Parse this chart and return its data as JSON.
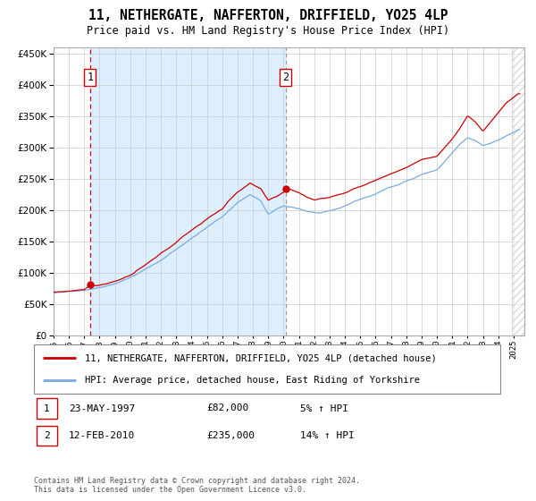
{
  "title": "11, NETHERGATE, NAFFERTON, DRIFFIELD, YO25 4LP",
  "subtitle": "Price paid vs. HM Land Registry's House Price Index (HPI)",
  "legend_line1": "11, NETHERGATE, NAFFERTON, DRIFFIELD, YO25 4LP (detached house)",
  "legend_line2": "HPI: Average price, detached house, East Riding of Yorkshire",
  "annotation1_date": "23-MAY-1997",
  "annotation1_price": "£82,000",
  "annotation1_hpi": "5% ↑ HPI",
  "annotation2_date": "12-FEB-2010",
  "annotation2_price": "£235,000",
  "annotation2_hpi": "14% ↑ HPI",
  "footer": "Contains HM Land Registry data © Crown copyright and database right 2024.\nThis data is licensed under the Open Government Licence v3.0.",
  "sale1_x": 1997.38,
  "sale1_y": 82000,
  "sale2_x": 2010.12,
  "sale2_y": 235000,
  "hpi_color": "#7aaadd",
  "price_color": "#cc0000",
  "grid_color": "#cccccc",
  "shade_color": "#ddeeff",
  "ylim": [
    0,
    460000
  ],
  "yticks": [
    0,
    50000,
    100000,
    150000,
    200000,
    250000,
    300000,
    350000,
    400000,
    450000
  ],
  "xlim_start": 1995.0,
  "xlim_end": 2025.7,
  "hpi_anchors_t": [
    1995.0,
    1996.0,
    1997.0,
    1998.0,
    1999.0,
    2000.0,
    2001.0,
    2002.0,
    2003.0,
    2004.0,
    2005.0,
    2006.0,
    2007.0,
    2007.8,
    2008.5,
    2009.0,
    2009.6,
    2010.0,
    2010.5,
    2011.0,
    2011.5,
    2012.0,
    2012.5,
    2013.0,
    2013.5,
    2014.0,
    2014.5,
    2015.0,
    2015.5,
    2016.0,
    2016.5,
    2017.0,
    2017.5,
    2018.0,
    2018.5,
    2019.0,
    2019.5,
    2020.0,
    2020.5,
    2021.0,
    2021.5,
    2022.0,
    2022.5,
    2023.0,
    2023.5,
    2024.0,
    2024.5,
    2025.3
  ],
  "hpi_anchors_v": [
    68000,
    70000,
    73000,
    78000,
    85000,
    95000,
    108000,
    122000,
    140000,
    158000,
    175000,
    192000,
    215000,
    228000,
    218000,
    195000,
    205000,
    208000,
    206000,
    204000,
    200000,
    198000,
    197000,
    199000,
    202000,
    207000,
    213000,
    218000,
    222000,
    226000,
    232000,
    238000,
    242000,
    248000,
    252000,
    258000,
    262000,
    265000,
    278000,
    292000,
    305000,
    315000,
    310000,
    302000,
    306000,
    312000,
    318000,
    328000
  ],
  "prop_anchors_t": [
    1995.0,
    1996.0,
    1997.0,
    1997.38,
    1998.0,
    1999.0,
    2000.0,
    2001.0,
    2002.0,
    2003.0,
    2004.0,
    2005.0,
    2006.0,
    2007.0,
    2007.8,
    2008.5,
    2009.0,
    2009.5,
    2010.0,
    2010.12,
    2010.5,
    2011.0,
    2011.5,
    2012.0,
    2013.0,
    2014.0,
    2015.0,
    2016.0,
    2017.0,
    2018.0,
    2019.0,
    2020.0,
    2021.0,
    2021.5,
    2022.0,
    2022.5,
    2023.0,
    2023.5,
    2024.0,
    2024.5,
    2025.3
  ],
  "prop_anchors_v": [
    69000,
    71000,
    75000,
    82000,
    83000,
    90000,
    100000,
    115000,
    132000,
    150000,
    170000,
    188000,
    205000,
    232000,
    245000,
    235000,
    215000,
    220000,
    228000,
    235000,
    232000,
    228000,
    222000,
    218000,
    222000,
    230000,
    240000,
    252000,
    262000,
    272000,
    285000,
    290000,
    318000,
    335000,
    355000,
    345000,
    330000,
    345000,
    360000,
    375000,
    390000
  ]
}
